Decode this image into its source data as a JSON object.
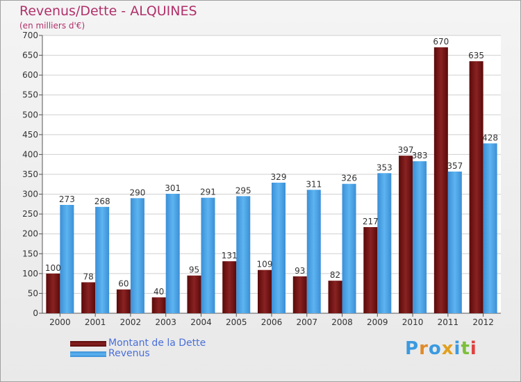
{
  "title": "Revenus/Dette - ALQUINES",
  "subtitle": "(en milliers d'€)",
  "colors": {
    "dette": "#7a1414",
    "revenus": "#4aa3e6",
    "title": "#b0306a",
    "legend_text": "#4a6fd8"
  },
  "logo": {
    "text": "Proxiti",
    "letters": [
      "P",
      "r",
      "o",
      "x",
      "i",
      "t",
      "i"
    ],
    "colors": [
      "#3b9ae0",
      "#e08a2a",
      "#3b9ae0",
      "#e0a020",
      "#3b9ae0",
      "#7cbf3a",
      "#e04040"
    ]
  },
  "chart_data": {
    "type": "bar",
    "categories": [
      "2000",
      "2001",
      "2002",
      "2003",
      "2004",
      "2005",
      "2006",
      "2007",
      "2008",
      "2009",
      "2010",
      "2011",
      "2012"
    ],
    "series": [
      {
        "name": "Montant de la Dette",
        "values": [
          100,
          78,
          60,
          40,
          95,
          131,
          109,
          93,
          82,
          217,
          397,
          670,
          635
        ]
      },
      {
        "name": "Revenus",
        "values": [
          273,
          268,
          290,
          301,
          291,
          295,
          329,
          311,
          326,
          353,
          383,
          357,
          428
        ]
      }
    ],
    "ylim": [
      0,
      700
    ],
    "yticks": [
      0,
      50,
      100,
      150,
      200,
      250,
      300,
      350,
      400,
      450,
      500,
      550,
      600,
      650,
      700
    ],
    "grid": true,
    "legend_position": "bottom-left"
  }
}
